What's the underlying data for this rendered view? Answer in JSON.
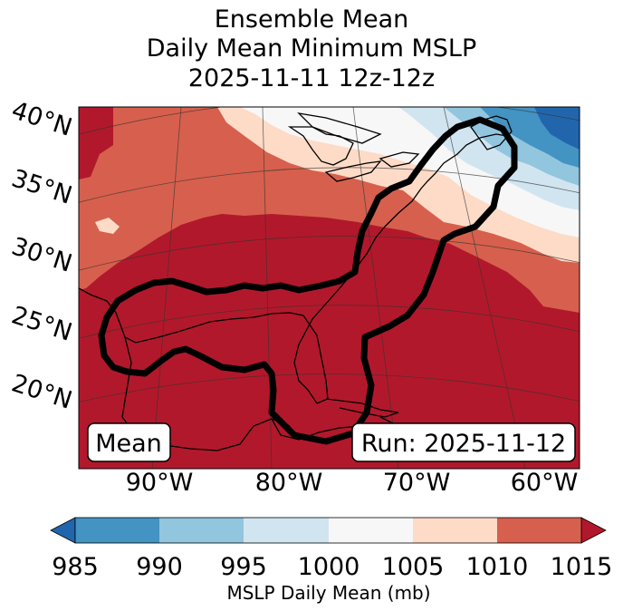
{
  "title": {
    "line1": "Ensemble Mean",
    "line2": "Daily Mean Minimum MSLP",
    "line3": "2025-11-11 12z-12z"
  },
  "map": {
    "lat_labels": [
      "40°N",
      "35°N",
      "30°N",
      "25°N",
      "20°N"
    ],
    "lon_labels": [
      "90°W",
      "80°W",
      "70°W",
      "60°W"
    ],
    "mean_box": "Mean",
    "run_box": "Run: 2025-11-12"
  },
  "colorbar": {
    "ticks": [
      "985",
      "990",
      "995",
      "1000",
      "1005",
      "1010",
      "1015"
    ],
    "label": "MSLP Daily Mean (mb)",
    "colors": [
      "#2166ac",
      "#4393c3",
      "#92c5de",
      "#d1e5f0",
      "#f7f7f7",
      "#fddbc7",
      "#d6604d",
      "#b2182b"
    ]
  }
}
